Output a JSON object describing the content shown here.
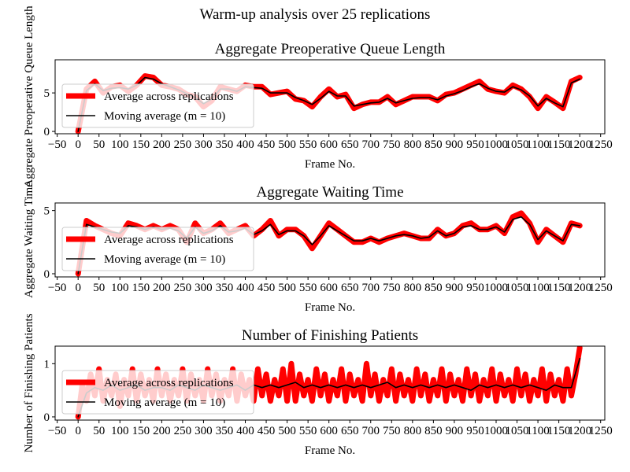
{
  "suptitle": "Warm-up analysis over 25 replications",
  "colors": {
    "average": "#ff0000",
    "moving": "#000000"
  },
  "chart_data": [
    {
      "type": "line",
      "title": "Aggregate Preoperative Queue Length",
      "xlabel": "Frame No.",
      "ylabel": "Aggregate Preoperative Queue Length",
      "xlim": [
        -55,
        1260
      ],
      "ylim": [
        -0.3,
        9.3
      ],
      "xticks": [
        -50,
        0,
        50,
        100,
        150,
        200,
        250,
        300,
        350,
        400,
        450,
        500,
        550,
        600,
        650,
        700,
        750,
        800,
        850,
        900,
        950,
        1000,
        1050,
        1100,
        1150,
        1200,
        1250
      ],
      "yticks": [
        0,
        5
      ],
      "legend": "upper-left",
      "series": [
        {
          "name": "Average across replications",
          "color": "#ff0000",
          "x": [
            0,
            20,
            40,
            60,
            80,
            100,
            120,
            140,
            160,
            180,
            200,
            220,
            240,
            260,
            280,
            300,
            320,
            340,
            360,
            380,
            400,
            420,
            440,
            460,
            480,
            500,
            520,
            540,
            560,
            580,
            600,
            620,
            640,
            660,
            680,
            700,
            720,
            740,
            760,
            780,
            800,
            820,
            840,
            860,
            880,
            900,
            920,
            940,
            960,
            980,
            1000,
            1020,
            1040,
            1060,
            1080,
            1100,
            1120,
            1140,
            1160,
            1180,
            1200
          ],
          "y": [
            0,
            5.5,
            6.5,
            5.0,
            5.8,
            6.0,
            5.2,
            6.0,
            7.2,
            7.0,
            6.0,
            5.8,
            5.5,
            4.8,
            4.5,
            3.2,
            4.0,
            5.8,
            5.5,
            5.2,
            6.0,
            5.8,
            5.8,
            4.8,
            5.0,
            5.2,
            4.2,
            4.0,
            3.2,
            4.5,
            5.5,
            4.5,
            4.8,
            3.0,
            3.5,
            3.8,
            3.8,
            4.5,
            3.5,
            4.0,
            4.5,
            4.5,
            4.5,
            4.0,
            4.8,
            5.0,
            5.5,
            6.0,
            6.5,
            5.5,
            5.2,
            5.0,
            6.0,
            5.5,
            4.5,
            3.0,
            4.5,
            3.8,
            3.0,
            6.5,
            7.0
          ]
        },
        {
          "name": "Moving average (m = 10)",
          "color": "#000000",
          "x": [
            0,
            20,
            40,
            60,
            80,
            100,
            120,
            140,
            160,
            180,
            200,
            220,
            240,
            260,
            280,
            300,
            320,
            340,
            360,
            380,
            400,
            420,
            440,
            460,
            480,
            500,
            520,
            540,
            560,
            580,
            600,
            620,
            640,
            660,
            680,
            700,
            720,
            740,
            760,
            780,
            800,
            820,
            840,
            860,
            880,
            900,
            920,
            940,
            960,
            980,
            1000,
            1020,
            1040,
            1060,
            1080,
            1100,
            1120,
            1140,
            1160,
            1180,
            1200
          ],
          "y": [
            0,
            5.3,
            6.2,
            5.3,
            5.6,
            5.7,
            5.5,
            6.0,
            7.0,
            6.8,
            6.2,
            5.8,
            5.4,
            4.9,
            4.4,
            3.6,
            4.2,
            5.5,
            5.5,
            5.2,
            5.8,
            5.7,
            5.6,
            5.0,
            5.0,
            5.0,
            4.4,
            4.0,
            3.5,
            4.3,
            5.2,
            4.6,
            4.6,
            3.3,
            3.5,
            3.7,
            3.8,
            4.3,
            3.7,
            4.0,
            4.3,
            4.4,
            4.4,
            4.1,
            4.6,
            4.9,
            5.3,
            5.8,
            6.2,
            5.6,
            5.2,
            5.1,
            5.8,
            5.4,
            4.6,
            3.3,
            4.3,
            3.7,
            3.2,
            6.3,
            6.8
          ]
        }
      ]
    },
    {
      "type": "line",
      "title": "Aggregate Waiting Time",
      "xlabel": "Frame No.",
      "ylabel": "Aggregate Waiting Time",
      "xlim": [
        -55,
        1260
      ],
      "ylim": [
        -0.25,
        5.6
      ],
      "xticks": [
        -50,
        0,
        50,
        100,
        150,
        200,
        250,
        300,
        350,
        400,
        450,
        500,
        550,
        600,
        650,
        700,
        750,
        800,
        850,
        900,
        950,
        1000,
        1050,
        1100,
        1150,
        1200,
        1250
      ],
      "yticks": [
        0,
        5
      ],
      "legend": "upper-left",
      "series": [
        {
          "name": "Average across replications",
          "color": "#ff0000",
          "x": [
            0,
            20,
            40,
            60,
            80,
            100,
            120,
            140,
            160,
            180,
            200,
            220,
            240,
            260,
            280,
            300,
            320,
            340,
            360,
            380,
            400,
            420,
            440,
            460,
            480,
            500,
            520,
            540,
            560,
            580,
            600,
            620,
            640,
            660,
            680,
            700,
            720,
            740,
            760,
            780,
            800,
            820,
            840,
            860,
            880,
            900,
            920,
            940,
            960,
            980,
            1000,
            1020,
            1040,
            1060,
            1080,
            1100,
            1120,
            1140,
            1160,
            1180,
            1200
          ],
          "y": [
            0,
            4.2,
            3.8,
            3.5,
            3.2,
            3.0,
            4.0,
            3.8,
            3.5,
            3.8,
            3.5,
            3.8,
            3.5,
            2.5,
            4.0,
            3.2,
            3.5,
            4.0,
            3.2,
            3.5,
            3.8,
            3.0,
            3.5,
            4.2,
            3.0,
            3.5,
            3.5,
            3.0,
            2.0,
            3.0,
            4.0,
            3.5,
            3.0,
            2.5,
            2.5,
            2.8,
            2.5,
            2.8,
            3.0,
            3.2,
            3.0,
            2.8,
            2.8,
            3.5,
            3.0,
            3.2,
            3.8,
            4.0,
            3.5,
            3.5,
            3.8,
            3.2,
            4.5,
            4.8,
            4.0,
            2.5,
            3.5,
            3.0,
            2.5,
            4.0,
            3.8
          ]
        },
        {
          "name": "Moving average (m = 10)",
          "color": "#000000",
          "x": [
            0,
            20,
            40,
            60,
            80,
            100,
            120,
            140,
            160,
            180,
            200,
            220,
            240,
            260,
            280,
            300,
            320,
            340,
            360,
            380,
            400,
            420,
            440,
            460,
            480,
            500,
            520,
            540,
            560,
            580,
            600,
            620,
            640,
            660,
            680,
            700,
            720,
            740,
            760,
            780,
            800,
            820,
            840,
            860,
            880,
            900,
            920,
            940,
            960,
            980,
            1000,
            1020,
            1040,
            1060,
            1080,
            1100,
            1120,
            1140,
            1160,
            1180,
            1200
          ],
          "y": [
            0,
            3.9,
            3.7,
            3.5,
            3.3,
            3.2,
            3.8,
            3.7,
            3.5,
            3.7,
            3.5,
            3.6,
            3.4,
            2.8,
            3.7,
            3.2,
            3.4,
            3.8,
            3.3,
            3.4,
            3.6,
            3.1,
            3.4,
            3.9,
            3.1,
            3.4,
            3.4,
            3.0,
            2.3,
            3.0,
            3.8,
            3.4,
            3.0,
            2.6,
            2.6,
            2.8,
            2.6,
            2.8,
            3.0,
            3.1,
            3.0,
            2.8,
            2.9,
            3.4,
            3.0,
            3.2,
            3.7,
            3.8,
            3.5,
            3.5,
            3.7,
            3.3,
            4.3,
            4.5,
            3.9,
            2.7,
            3.4,
            3.0,
            2.6,
            3.9,
            3.8
          ]
        }
      ]
    },
    {
      "type": "line",
      "title": "Number of Finishing Patients",
      "xlabel": "Frame No.",
      "ylabel": "Number of Finishing Patients",
      "xlim": [
        -55,
        1260
      ],
      "ylim": [
        -0.06,
        1.33
      ],
      "xticks": [
        -50,
        0,
        50,
        100,
        150,
        200,
        250,
        300,
        350,
        400,
        450,
        500,
        550,
        600,
        650,
        700,
        750,
        800,
        850,
        900,
        950,
        1000,
        1050,
        1100,
        1150,
        1200,
        1250
      ],
      "yticks": [
        0,
        1
      ],
      "legend": "upper-left",
      "series": [
        {
          "name": "Average across replications",
          "color": "#ff0000",
          "x": [
            0,
            10,
            20,
            30,
            40,
            50,
            60,
            70,
            80,
            90,
            100,
            110,
            120,
            130,
            140,
            150,
            160,
            170,
            180,
            190,
            200,
            210,
            220,
            230,
            240,
            250,
            260,
            270,
            280,
            290,
            300,
            310,
            320,
            330,
            340,
            350,
            360,
            370,
            380,
            390,
            400,
            410,
            420,
            430,
            440,
            450,
            460,
            470,
            480,
            490,
            500,
            510,
            520,
            530,
            540,
            550,
            560,
            570,
            580,
            590,
            600,
            610,
            620,
            630,
            640,
            650,
            660,
            670,
            680,
            690,
            700,
            710,
            720,
            730,
            740,
            750,
            760,
            770,
            780,
            790,
            800,
            810,
            820,
            830,
            840,
            850,
            860,
            870,
            880,
            890,
            900,
            910,
            920,
            930,
            940,
            950,
            960,
            970,
            980,
            990,
            1000,
            1010,
            1020,
            1030,
            1040,
            1050,
            1060,
            1070,
            1080,
            1090,
            1100,
            1110,
            1120,
            1130,
            1140,
            1150,
            1160,
            1170,
            1180,
            1190,
            1200
          ],
          "y": [
            0,
            0.6,
            0.3,
            0.8,
            0.4,
            0.9,
            0.3,
            0.7,
            0.4,
            0.8,
            0.2,
            0.7,
            0.4,
            0.9,
            0.3,
            0.8,
            0.4,
            0.7,
            0.3,
            0.9,
            0.4,
            0.8,
            0.3,
            0.7,
            0.4,
            0.9,
            0.3,
            0.8,
            0.4,
            0.7,
            0.3,
            0.9,
            0.4,
            0.8,
            0.3,
            0.7,
            0.4,
            0.9,
            0.3,
            0.8,
            0.4,
            0.7,
            0.3,
            0.9,
            0.4,
            0.8,
            0.3,
            0.7,
            0.4,
            0.9,
            0.3,
            1.0,
            0.3,
            0.8,
            0.4,
            0.7,
            0.3,
            0.9,
            0.4,
            0.8,
            0.3,
            0.7,
            0.4,
            0.9,
            0.3,
            0.8,
            0.4,
            0.7,
            0.3,
            1.0,
            0.4,
            0.8,
            0.3,
            0.7,
            0.4,
            0.9,
            0.3,
            0.8,
            0.4,
            0.7,
            0.3,
            0.9,
            0.4,
            0.8,
            0.3,
            0.7,
            0.4,
            0.9,
            0.3,
            0.8,
            0.4,
            0.7,
            0.3,
            0.9,
            0.4,
            0.8,
            0.3,
            0.7,
            0.4,
            0.9,
            0.3,
            0.8,
            0.4,
            0.7,
            0.3,
            0.9,
            0.4,
            0.8,
            0.3,
            0.7,
            0.4,
            0.9,
            0.3,
            0.8,
            0.4,
            0.7,
            0.3,
            0.9,
            0.4,
            0.8,
            1.3
          ]
        },
        {
          "name": "Moving average (m = 10)",
          "color": "#000000",
          "x": [
            0,
            20,
            40,
            60,
            80,
            100,
            120,
            140,
            160,
            180,
            200,
            220,
            240,
            260,
            280,
            300,
            320,
            340,
            360,
            380,
            400,
            420,
            440,
            460,
            480,
            500,
            520,
            540,
            560,
            580,
            600,
            620,
            640,
            660,
            680,
            700,
            720,
            740,
            760,
            780,
            800,
            820,
            840,
            860,
            880,
            900,
            920,
            940,
            960,
            980,
            1000,
            1020,
            1040,
            1060,
            1080,
            1100,
            1120,
            1140,
            1160,
            1180,
            1200
          ],
          "y": [
            0,
            0.45,
            0.55,
            0.5,
            0.6,
            0.5,
            0.55,
            0.6,
            0.5,
            0.55,
            0.55,
            0.5,
            0.6,
            0.55,
            0.5,
            0.6,
            0.55,
            0.5,
            0.55,
            0.6,
            0.5,
            0.6,
            0.55,
            0.6,
            0.55,
            0.6,
            0.65,
            0.55,
            0.6,
            0.55,
            0.6,
            0.55,
            0.6,
            0.55,
            0.6,
            0.55,
            0.6,
            0.65,
            0.55,
            0.6,
            0.55,
            0.6,
            0.55,
            0.6,
            0.55,
            0.6,
            0.55,
            0.5,
            0.6,
            0.55,
            0.6,
            0.55,
            0.6,
            0.55,
            0.6,
            0.55,
            0.5,
            0.6,
            0.55,
            0.55,
            1.1
          ]
        }
      ]
    }
  ]
}
